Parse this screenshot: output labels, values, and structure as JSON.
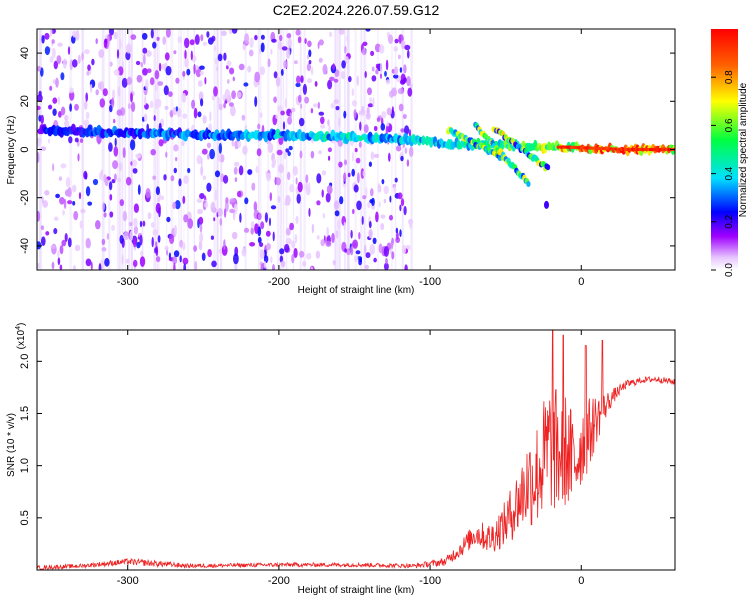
{
  "title": "C2E2.2024.226.07.59.G12",
  "chart_data": [
    {
      "type": "heatmap",
      "name": "spectrogram",
      "xlabel": "Height of straight line (km)",
      "ylabel": "Frequency (Hz)",
      "xlim": [
        -360,
        62
      ],
      "ylim": [
        -50,
        50
      ],
      "x_ticks": [
        -300,
        -200,
        -100,
        0
      ],
      "x_tick_labels": [
        "-300",
        "-200",
        "-100",
        "0"
      ],
      "y_ticks": [
        -40,
        -20,
        0,
        20,
        40
      ],
      "y_tick_labels": [
        "-40",
        "-20",
        "0",
        "20",
        "40"
      ],
      "colorbar": {
        "label": "Normalized spectral amplitude",
        "range": [
          0,
          1
        ],
        "ticks": [
          0,
          0.2,
          0.4,
          0.6,
          0.8
        ],
        "tick_labels": [
          "0.0",
          "0.2",
          "0.4",
          "0.6",
          "0.8"
        ]
      },
      "main_tone": {
        "x": [
          -355,
          -300,
          -250,
          -200,
          -150,
          -110,
          -80,
          -50,
          -30,
          -10,
          10,
          30,
          60
        ],
        "freq": [
          8,
          7,
          6,
          6,
          5,
          4,
          2,
          2,
          1,
          1,
          0.5,
          0,
          0
        ],
        "amplitude": [
          0.25,
          0.3,
          0.35,
          0.4,
          0.45,
          0.4,
          0.5,
          0.55,
          0.6,
          0.8,
          0.9,
          0.95,
          0.9
        ]
      },
      "branches": [
        {
          "x_start": -88,
          "f_start": 8,
          "x_end": -50,
          "f_end": -4
        },
        {
          "x_start": -70,
          "f_start": 10,
          "x_end": -35,
          "f_end": -14
        },
        {
          "x_start": -58,
          "f_start": 9,
          "x_end": -22,
          "f_end": -8
        }
      ],
      "noise_extent_x": [
        -360,
        -112
      ]
    },
    {
      "type": "line",
      "name": "snr",
      "xlabel": "Height of straight line (km)",
      "ylabel": "SNR (10 * v/v)",
      "scale_label": "(x10",
      "scale_exponent": "4",
      "xlim": [
        -360,
        62
      ],
      "ylim": [
        0,
        2.3
      ],
      "x_ticks": [
        -300,
        -200,
        -100,
        0
      ],
      "x_tick_labels": [
        "-300",
        "-200",
        "-100",
        "0"
      ],
      "y_ticks": [
        0.5,
        1.0,
        1.5,
        2.0
      ],
      "y_tick_labels": [
        "0.5",
        "1.0",
        "1.5",
        "2.0"
      ],
      "color": "#ee2222",
      "series": [
        {
          "name": "SNR",
          "x": [
            -360,
            -330,
            -300,
            -280,
            -260,
            -200,
            -150,
            -110,
            -90,
            -80,
            -70,
            -60,
            -50,
            -40,
            -35,
            -30,
            -25,
            -20,
            -15,
            -10,
            -5,
            0,
            5,
            10,
            15,
            20,
            25,
            30,
            40,
            50,
            62
          ],
          "values": [
            0.02,
            0.04,
            0.08,
            0.06,
            0.04,
            0.05,
            0.05,
            0.04,
            0.08,
            0.2,
            0.35,
            0.3,
            0.45,
            0.7,
            0.85,
            0.9,
            1.05,
            1.2,
            1.1,
            1.15,
            1.0,
            1.2,
            1.3,
            1.45,
            1.55,
            1.65,
            1.72,
            1.78,
            1.82,
            1.83,
            1.8
          ]
        }
      ],
      "noise_amplitude": [
        0.02,
        0.02,
        0.03,
        0.03,
        0.02,
        0.02,
        0.02,
        0.02,
        0.04,
        0.08,
        0.12,
        0.15,
        0.22,
        0.35,
        0.45,
        0.5,
        0.6,
        0.65,
        0.6,
        0.55,
        0.5,
        0.4,
        0.35,
        0.25,
        0.15,
        0.08,
        0.05,
        0.04,
        0.03,
        0.03,
        0.03
      ],
      "peaks": [
        {
          "x": -19,
          "value": 2.3
        },
        {
          "x": -12,
          "value": 2.25
        },
        {
          "x": 3,
          "value": 2.15
        },
        {
          "x": 14,
          "value": 2.2
        }
      ]
    }
  ]
}
